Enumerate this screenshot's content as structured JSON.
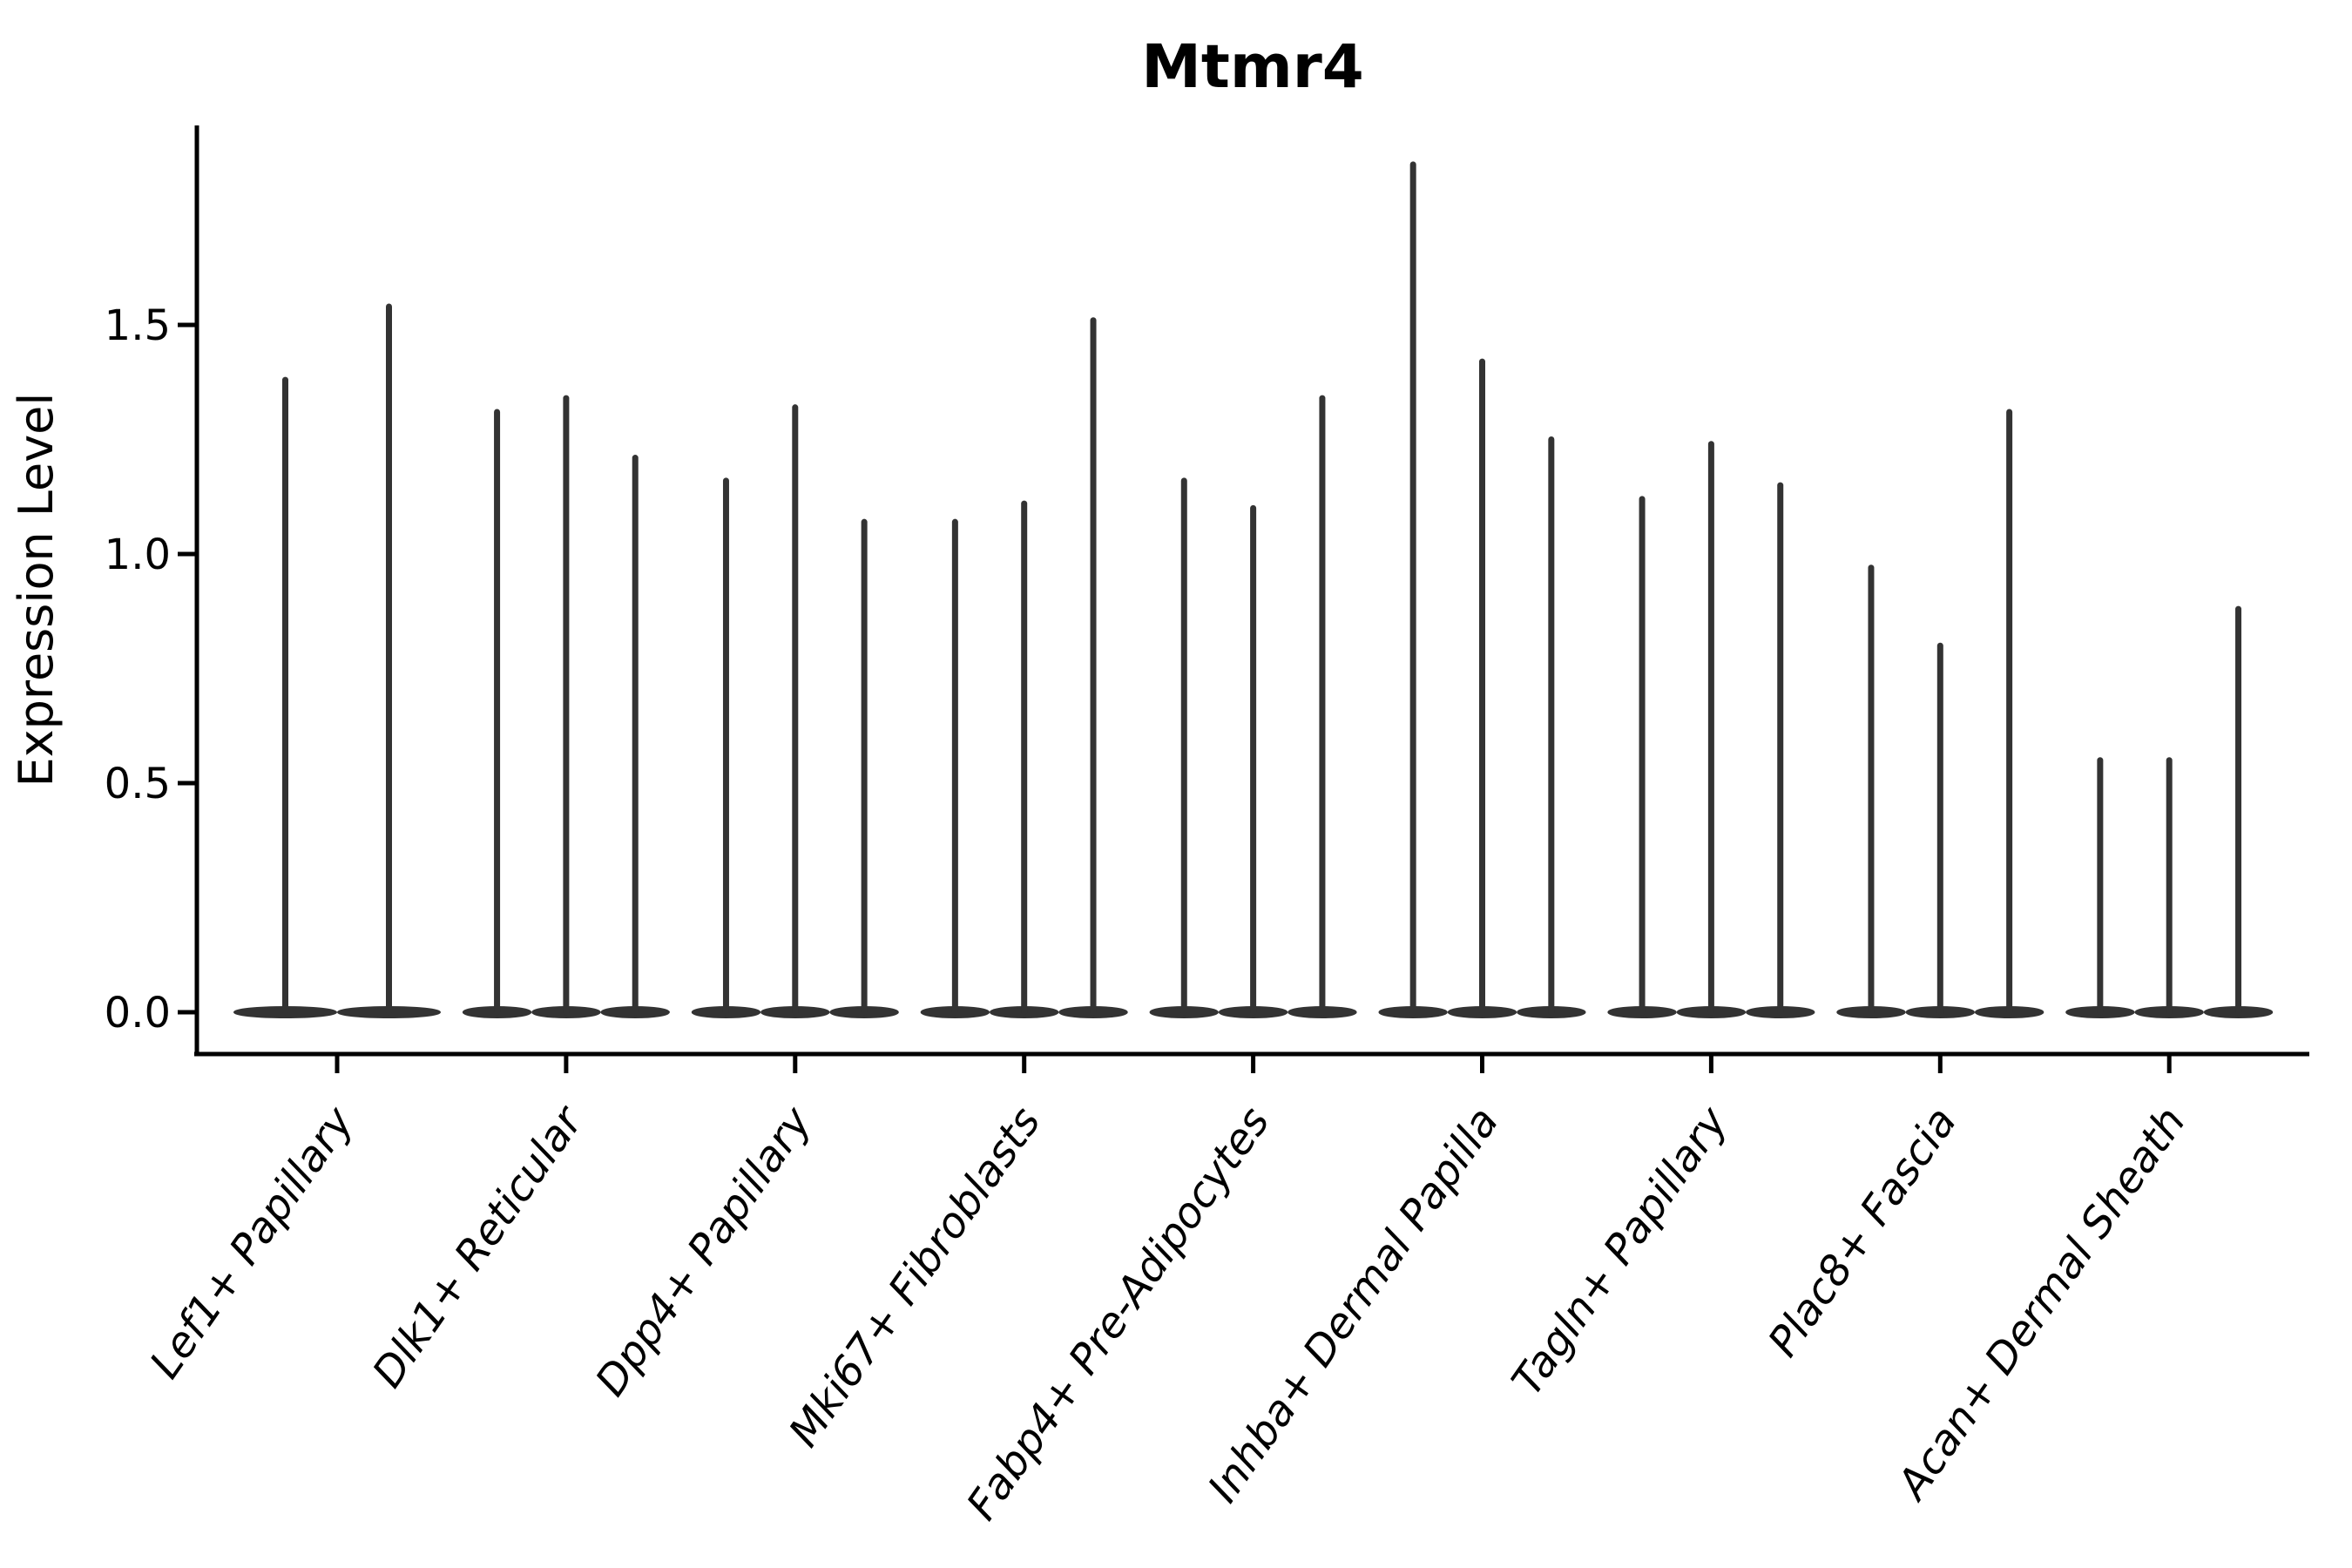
{
  "chart_data": {
    "type": "violin",
    "title": "Mtmr4",
    "ylabel": "Expression Level",
    "xlabel": "",
    "yticks": [
      0.0,
      0.5,
      1.0,
      1.5
    ],
    "ytick_labels": [
      "0.0",
      "0.5",
      "1.0",
      "1.5"
    ],
    "ylim": [
      -0.09,
      1.94
    ],
    "grid": false,
    "legend_position": "none",
    "categories": [
      "Lef1+ Papillary",
      "Dlk1+ Reticular",
      "Dpp4+ Papillary",
      "Mki67+ Fibroblasts",
      "Fabp4+ Pre-Adipocytes",
      "Inhba+ Dermal Papilla",
      "Tagln+ Papillary",
      "Plac8+ Fascia",
      "Acan+ Dermal Sheath"
    ],
    "groups": [
      {
        "category": "Lef1+ Papillary",
        "violin_max_expression": [
          1.38,
          1.54
        ]
      },
      {
        "category": "Dlk1+ Reticular",
        "violin_max_expression": [
          1.31,
          1.34,
          1.21
        ]
      },
      {
        "category": "Dpp4+ Papillary",
        "violin_max_expression": [
          1.16,
          1.32,
          1.07
        ]
      },
      {
        "category": "Mki67+ Fibroblasts",
        "violin_max_expression": [
          1.07,
          1.11,
          1.51
        ]
      },
      {
        "category": "Fabp4+ Pre-Adipocytes",
        "violin_max_expression": [
          1.16,
          1.1,
          1.34
        ]
      },
      {
        "category": "Inhba+ Dermal Papilla",
        "violin_max_expression": [
          1.85,
          1.42,
          1.25
        ]
      },
      {
        "category": "Tagln+ Papillary",
        "violin_max_expression": [
          1.12,
          1.24,
          1.15
        ]
      },
      {
        "category": "Plac8+ Fascia",
        "violin_max_expression": [
          0.97,
          0.8,
          1.31
        ]
      },
      {
        "category": "Acan+ Dermal Sheath",
        "violin_max_expression": [
          0.55,
          0.55,
          0.88
        ]
      }
    ],
    "shape_note": "zero-inflated distributions: each violin is a flat dark lens at expression 0 with a very thin vertical spike up to its maximum value",
    "colors": {
      "violin": "#333333",
      "axis": "#000000",
      "text": "#000000",
      "background": "#ffffff"
    }
  }
}
